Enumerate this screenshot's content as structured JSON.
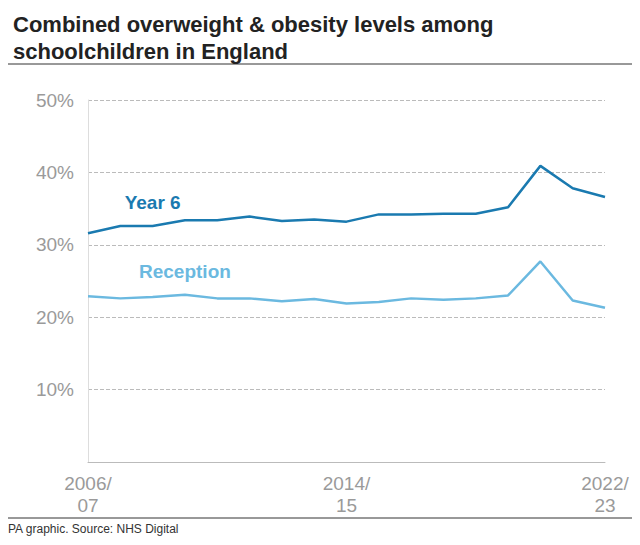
{
  "chart_data": {
    "type": "line",
    "title": "Combined overweight & obesity levels among schoolchildren in England",
    "source": "PA graphic. Source: NHS Digital",
    "categories": [
      "2006/07",
      null,
      null,
      null,
      null,
      null,
      null,
      null,
      "2014/15",
      null,
      null,
      null,
      null,
      null,
      null,
      null,
      "2022/23"
    ],
    "series": [
      {
        "name": "Year 6",
        "color": "#1a7ab0",
        "values": [
          31.6,
          32.6,
          32.6,
          33.4,
          33.4,
          33.9,
          33.3,
          33.5,
          33.2,
          34.2,
          34.2,
          34.3,
          34.3,
          35.2,
          40.9,
          37.8,
          36.6
        ]
      },
      {
        "name": "Reception",
        "color": "#6bb9e0",
        "values": [
          22.9,
          22.6,
          22.8,
          23.1,
          22.6,
          22.6,
          22.2,
          22.5,
          21.9,
          22.1,
          22.6,
          22.4,
          22.6,
          23.0,
          27.7,
          22.3,
          21.3
        ]
      }
    ],
    "ylim": [
      0,
      50
    ],
    "yticks": [
      {
        "value": 10,
        "label": "10%"
      },
      {
        "value": 20,
        "label": "20%"
      },
      {
        "value": 30,
        "label": "30%"
      },
      {
        "value": 40,
        "label": "40%"
      },
      {
        "value": 50,
        "label": "50%"
      }
    ],
    "grid": true
  }
}
